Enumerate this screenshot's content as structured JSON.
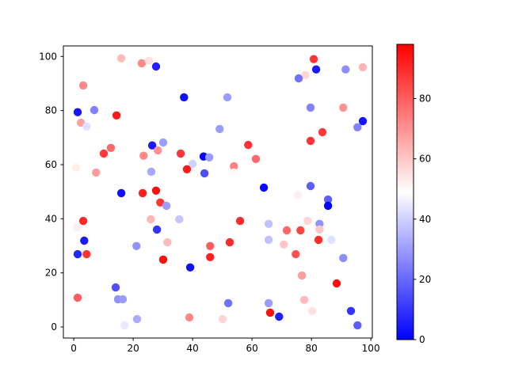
{
  "figure": {
    "background_color": "#ffffff",
    "title": "",
    "colormap": "bwr"
  },
  "chart_data": {
    "type": "scatter",
    "title": "",
    "xlabel": "",
    "ylabel": "",
    "grid": false,
    "xlim": [
      -3.5,
      100.5
    ],
    "ylim": [
      -4.1,
      103.9
    ],
    "x_ticks": [
      0,
      20,
      40,
      60,
      80,
      100
    ],
    "y_ticks": [
      0,
      20,
      40,
      60,
      80,
      100
    ],
    "marker": {
      "shape": "circle",
      "radius_px": 5.2
    },
    "colorbar": {
      "vmin": 0,
      "vmax": 98,
      "ticks": [
        0,
        20,
        40,
        60,
        80
      ],
      "color_low": "#0000ff",
      "color_mid": "#ffffff",
      "color_high": "#ff0000"
    },
    "points": [
      [
        16.0,
        99.3,
        62
      ],
      [
        22.9,
        97.5,
        72
      ],
      [
        25.3,
        98.4,
        55
      ],
      [
        27.7,
        96.3,
        6
      ],
      [
        3.2,
        89.3,
        72
      ],
      [
        1.3,
        79.4,
        4
      ],
      [
        6.9,
        80.2,
        25
      ],
      [
        14.4,
        78.2,
        93
      ],
      [
        2.4,
        75.5,
        67
      ],
      [
        4.3,
        74.1,
        43
      ],
      [
        37.1,
        84.9,
        3
      ],
      [
        51.7,
        84.9,
        30
      ],
      [
        49.1,
        73.2,
        30
      ],
      [
        80.8,
        99.0,
        88
      ],
      [
        81.6,
        95.2,
        5
      ],
      [
        77.9,
        93.1,
        57
      ],
      [
        75.7,
        91.9,
        22
      ],
      [
        91.5,
        95.2,
        27
      ],
      [
        97.3,
        96.0,
        63
      ],
      [
        79.7,
        81.1,
        25
      ],
      [
        90.7,
        81.1,
        70
      ],
      [
        97.3,
        76.1,
        4
      ],
      [
        95.5,
        73.8,
        25
      ],
      [
        83.7,
        72.0,
        87
      ],
      [
        79.7,
        68.8,
        88
      ],
      [
        26.4,
        67.1,
        5
      ],
      [
        30.1,
        68.2,
        30
      ],
      [
        28.3,
        65.3,
        70
      ],
      [
        23.5,
        63.3,
        72
      ],
      [
        10.1,
        64.1,
        87
      ],
      [
        12.5,
        66.2,
        78
      ],
      [
        36.0,
        64.1,
        88
      ],
      [
        0.8,
        58.9,
        52
      ],
      [
        7.5,
        57.1,
        68
      ],
      [
        43.7,
        63.0,
        1
      ],
      [
        45.6,
        62.7,
        30
      ],
      [
        40.0,
        60.3,
        40
      ],
      [
        38.1,
        58.3,
        93
      ],
      [
        44.0,
        56.8,
        15
      ],
      [
        53.9,
        59.4,
        73
      ],
      [
        53.9,
        57.1,
        50
      ],
      [
        58.7,
        67.3,
        88
      ],
      [
        61.3,
        62.1,
        78
      ],
      [
        64.0,
        51.5,
        2
      ],
      [
        79.7,
        52.1,
        18
      ],
      [
        75.5,
        48.9,
        52
      ],
      [
        16.0,
        49.5,
        3
      ],
      [
        23.2,
        49.5,
        92
      ],
      [
        27.7,
        50.4,
        95
      ],
      [
        29.1,
        46.0,
        88
      ],
      [
        31.2,
        44.8,
        30
      ],
      [
        85.6,
        47.1,
        18
      ],
      [
        85.6,
        44.8,
        1
      ],
      [
        26.1,
        57.4,
        32
      ],
      [
        3.2,
        39.2,
        90
      ],
      [
        1.1,
        36.9,
        52
      ],
      [
        25.9,
        39.8,
        63
      ],
      [
        28.0,
        36.0,
        10
      ],
      [
        35.5,
        39.8,
        38
      ],
      [
        56.0,
        39.2,
        90
      ],
      [
        65.6,
        38.1,
        37
      ],
      [
        65.6,
        32.2,
        37
      ],
      [
        71.7,
        35.7,
        78
      ],
      [
        76.3,
        35.7,
        85
      ],
      [
        78.7,
        39.2,
        57
      ],
      [
        82.7,
        38.1,
        28
      ],
      [
        82.7,
        36.0,
        60
      ],
      [
        70.7,
        30.5,
        60
      ],
      [
        82.4,
        32.2,
        90
      ],
      [
        86.7,
        32.2,
        43
      ],
      [
        3.5,
        31.9,
        5
      ],
      [
        1.3,
        26.9,
        7
      ],
      [
        4.3,
        26.9,
        88
      ],
      [
        21.1,
        29.9,
        28
      ],
      [
        30.1,
        24.9,
        95
      ],
      [
        31.5,
        31.3,
        62
      ],
      [
        45.9,
        29.9,
        80
      ],
      [
        52.5,
        31.3,
        90
      ],
      [
        45.9,
        25.8,
        92
      ],
      [
        39.2,
        22.0,
        3
      ],
      [
        74.7,
        26.9,
        82
      ],
      [
        90.7,
        25.5,
        27
      ],
      [
        76.8,
        19.0,
        68
      ],
      [
        88.5,
        16.1,
        95
      ],
      [
        14.1,
        14.6,
        15
      ],
      [
        1.3,
        10.8,
        80
      ],
      [
        14.9,
        10.2,
        28
      ],
      [
        16.5,
        10.2,
        30
      ],
      [
        52.0,
        8.8,
        22
      ],
      [
        65.6,
        8.8,
        30
      ],
      [
        38.9,
        3.5,
        72
      ],
      [
        50.1,
        2.9,
        57
      ],
      [
        77.6,
        10.0,
        62
      ],
      [
        80.3,
        5.9,
        55
      ],
      [
        66.1,
        5.3,
        95
      ],
      [
        69.1,
        3.8,
        6
      ],
      [
        93.3,
        5.9,
        10
      ],
      [
        95.5,
        0.6,
        18
      ],
      [
        21.3,
        2.9,
        33
      ],
      [
        17.1,
        0.6,
        45
      ]
    ]
  }
}
